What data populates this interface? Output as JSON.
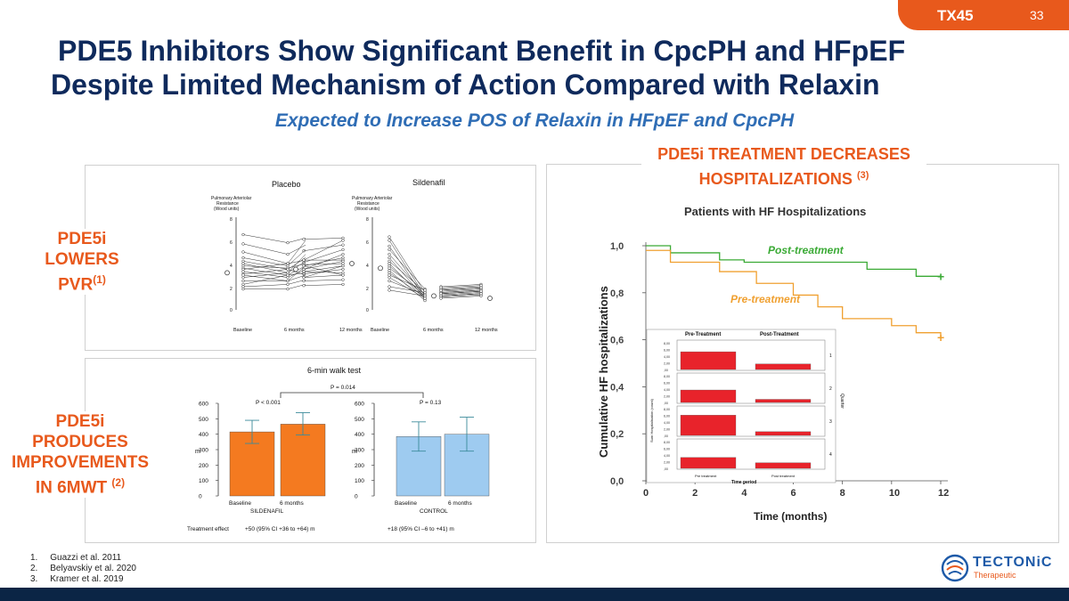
{
  "header": {
    "code": "TX45",
    "page": "33"
  },
  "title": {
    "line1": "PDE5 Inhibitors Show Significant Benefit in CpcPH and HFpEF",
    "line2": "Despite Limited Mechanism of Action Compared with Relaxin"
  },
  "subtitle": "Expected to Increase POS of Relaxin in HFpEF and CpcPH",
  "left_labels": {
    "pvr": {
      "line1": "PDE5i",
      "line2": "LOWERS",
      "line3": "PVR",
      "sup": "(1)"
    },
    "mwt": {
      "line1": "PDE5i",
      "line2": "PRODUCES",
      "line3": "IMPROVEMENTS",
      "line4": "IN 6MWT",
      "sup": "(2)"
    }
  },
  "right_heading": {
    "line1": "PDE5i TREATMENT DECREASES",
    "line2": "HOSPITALIZATIONS",
    "sup": "(3)"
  },
  "pvr_chart": {
    "placebo_title": "Placebo",
    "sildenafil_title": "Sildenafil",
    "ylabel_l1": "Pulmonary Arteriolar",
    "ylabel_l2": "Resistance",
    "ylabel_l3": "(Wood units)",
    "yticks": [
      "8",
      "6",
      "4",
      "2",
      "0"
    ],
    "x_baseline": "Baseline",
    "x_6m": "6 months",
    "x_12m": "12 months"
  },
  "walk_chart": {
    "title": "6-min walk test",
    "p_overall": "P = 0.014",
    "p_sildenafil": "P < 0.001",
    "p_control": "P = 0.13",
    "yticks": [
      "600",
      "500",
      "400",
      "300",
      "200",
      "100",
      "0"
    ],
    "yunit": "m",
    "bar_labels": [
      "Baseline",
      "6 months",
      "Baseline",
      "6 months"
    ],
    "group_sildenafil": "SILDENAFIL",
    "group_control": "CONTROL",
    "effect_label": "Treatment effect",
    "effect_sildenafil": "+50 (95% CI +36 to +64) m",
    "effect_control": "+18 (95% CI –6 to +41) m"
  },
  "chart_data": {
    "type": "bar",
    "title": "6-min walk test",
    "categories": [
      "SILDENAFIL Baseline",
      "SILDENAFIL 6 months",
      "CONTROL Baseline",
      "CONTROL 6 months"
    ],
    "values": [
      415,
      465,
      385,
      400
    ],
    "error_low": [
      340,
      395,
      290,
      290
    ],
    "error_high": [
      490,
      540,
      480,
      510
    ],
    "ylabel": "m",
    "ylim": [
      0,
      600
    ],
    "colors": [
      "#f47a20",
      "#f47a20",
      "#9ecbf0",
      "#9ecbf0"
    ]
  },
  "hosp_chart": {
    "title": "Patients with HF Hospitalizations",
    "ylabel": "Cumulative HF hospitalizations",
    "xlabel": "Time (months)",
    "yticks": [
      "1,0",
      "0,8",
      "0,6",
      "0,4",
      "0,2",
      "0,0"
    ],
    "xticks": [
      "0",
      "2",
      "4",
      "6",
      "8",
      "10",
      "12"
    ],
    "post_label": "Post-treatment",
    "pre_label": "Pre-treatment",
    "inset_pre": "Pre-Treatment",
    "inset_post": "Post-Treatment",
    "inset_xlabel": "Time period",
    "inset_ylabel": "Sum Hospitalisation (count)",
    "inset_side": "Quarter",
    "inset_pre_small": "Pre treatment",
    "inset_post_small": "Post treatment",
    "quarters": [
      "1",
      "2",
      "3",
      "4"
    ],
    "inset_ticks": [
      "8,00",
      "6,00",
      "4,00",
      "2,00",
      ",00"
    ]
  },
  "colors": {
    "navy": "#0f2a5c",
    "orange": "#e8591c",
    "blue": "#2f6db5",
    "green": "#3aaa35",
    "amber": "#f0a030"
  },
  "references": [
    "Guazzi et al. 2011",
    "Belyavskiy et al. 2020",
    "Kramer et al. 2019"
  ],
  "logo": {
    "name": "TECTONiC",
    "sub": "Therapeutic"
  }
}
